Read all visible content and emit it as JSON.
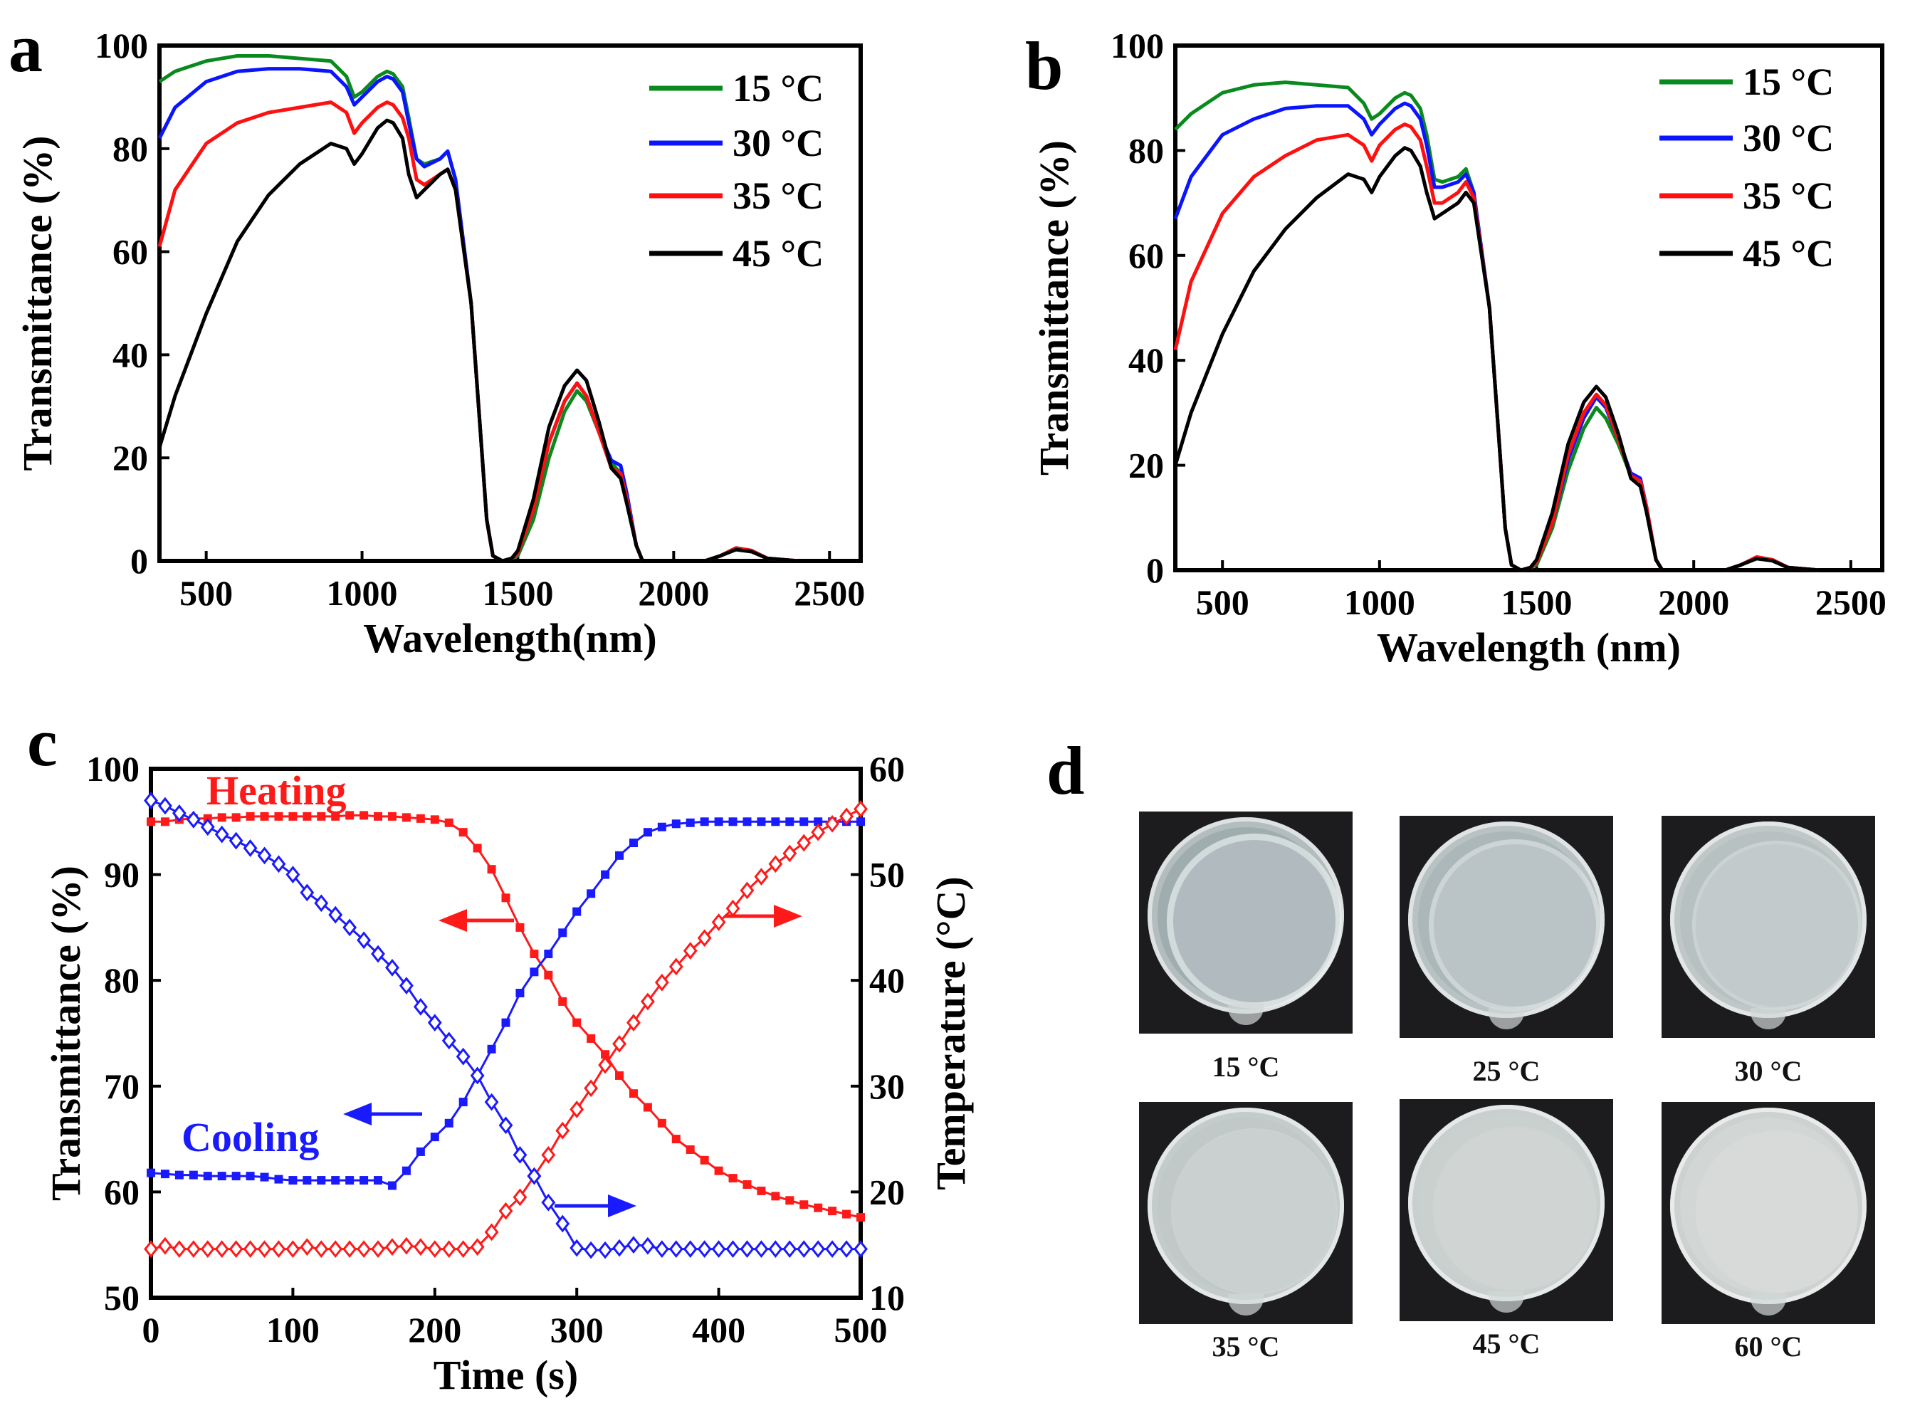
{
  "panel_labels": {
    "a": "a",
    "b": "b",
    "c": "c",
    "d": "d"
  },
  "chart_data": [
    {
      "id": "a",
      "type": "line",
      "title": "",
      "xlabel": "Wavelength(nm)",
      "ylabel": "Transmittance (%)",
      "xlim": [
        350,
        2600
      ],
      "ylim": [
        0,
        100
      ],
      "xticks": [
        500,
        1000,
        1500,
        2000,
        2500
      ],
      "yticks": [
        0,
        20,
        40,
        60,
        80,
        100
      ],
      "grid": false,
      "legend_position": "top-right",
      "x": [
        350,
        400,
        500,
        600,
        700,
        800,
        900,
        950,
        975,
        1000,
        1050,
        1080,
        1100,
        1130,
        1150,
        1175,
        1200,
        1250,
        1275,
        1300,
        1350,
        1380,
        1400,
        1420,
        1450,
        1480,
        1500,
        1550,
        1600,
        1650,
        1690,
        1720,
        1760,
        1800,
        1830,
        1850,
        1880,
        1900,
        2000,
        2100,
        2150,
        2200,
        2250,
        2300,
        2400,
        2500,
        2600
      ],
      "series": [
        {
          "name": "15 °C",
          "color": "#0a8a1e",
          "values": [
            93,
            95,
            97,
            98,
            98,
            97.5,
            97,
            94,
            90,
            91,
            94,
            95,
            94.5,
            92,
            86,
            78,
            77,
            78,
            79.5,
            74,
            50,
            25,
            8,
            1,
            0,
            0.5,
            1,
            8,
            20,
            29,
            33,
            31,
            25,
            19,
            17,
            12,
            3,
            0,
            0,
            0,
            1,
            2.5,
            2,
            0.5,
            0,
            0,
            0
          ]
        },
        {
          "name": "30 °C",
          "color": "#0a14ff",
          "values": [
            82,
            88,
            93,
            95,
            95.5,
            95.5,
            95,
            92,
            88.5,
            90,
            93,
            94,
            93.5,
            91,
            85,
            78,
            76.5,
            78,
            79.5,
            74,
            50,
            25,
            8,
            1,
            0,
            0.5,
            1.5,
            10,
            23,
            31,
            34.5,
            32,
            25,
            19.5,
            18.5,
            13,
            3,
            0,
            0,
            0,
            1,
            2.5,
            2,
            0.5,
            0,
            0,
            0
          ]
        },
        {
          "name": "35 °C",
          "color": "#ff1010",
          "values": [
            61,
            72,
            81,
            85,
            87,
            88,
            89,
            87,
            83,
            85,
            88,
            89,
            88.5,
            86,
            82,
            74,
            73,
            75,
            76,
            72,
            50,
            25,
            8,
            1,
            0,
            0.5,
            1.5,
            10,
            23,
            31,
            34.5,
            32,
            25,
            18,
            17,
            12,
            3,
            0,
            0,
            0,
            1,
            2.5,
            2,
            0.5,
            0,
            0,
            0
          ]
        },
        {
          "name": "45 °C",
          "color": "#000000",
          "values": [
            22,
            32,
            48,
            62,
            71,
            77,
            81,
            80,
            77,
            79,
            84,
            85.5,
            85,
            82,
            75,
            70.5,
            72,
            75,
            76,
            72,
            50,
            25,
            8,
            1,
            0,
            0.5,
            2,
            12,
            26,
            34,
            37,
            35,
            27,
            18,
            16,
            11,
            3,
            0,
            0,
            0,
            1,
            2.2,
            1.8,
            0.5,
            0,
            0,
            0
          ]
        }
      ]
    },
    {
      "id": "b",
      "type": "line",
      "title": "",
      "xlabel": "Wavelength (nm)",
      "ylabel": "Transmittance (%)",
      "xlim": [
        350,
        2600
      ],
      "ylim": [
        0,
        100
      ],
      "xticks": [
        500,
        1000,
        1500,
        2000,
        2500
      ],
      "yticks": [
        0,
        20,
        40,
        60,
        80,
        100
      ],
      "grid": false,
      "legend_position": "top-right",
      "x": [
        350,
        400,
        500,
        600,
        700,
        800,
        900,
        950,
        975,
        1000,
        1050,
        1080,
        1100,
        1130,
        1150,
        1175,
        1200,
        1250,
        1275,
        1300,
        1350,
        1380,
        1400,
        1420,
        1450,
        1480,
        1500,
        1550,
        1600,
        1650,
        1690,
        1720,
        1760,
        1800,
        1830,
        1850,
        1880,
        1900,
        2000,
        2100,
        2150,
        2200,
        2250,
        2300,
        2400,
        2500,
        2600
      ],
      "series": [
        {
          "name": "15 °C",
          "color": "#0a8a1e",
          "values": [
            84,
            87,
            91,
            92.5,
            93,
            92.5,
            92,
            89,
            86,
            87,
            90,
            91,
            90.5,
            88,
            83,
            74.5,
            74,
            75,
            76.5,
            72,
            50,
            25,
            8,
            1,
            0,
            0.5,
            1,
            8,
            19,
            27,
            31,
            29,
            24,
            18,
            17,
            11,
            2,
            0,
            0,
            0,
            1,
            2.5,
            2,
            0.5,
            0,
            0,
            0
          ]
        },
        {
          "name": "30 °C",
          "color": "#0a14ff",
          "values": [
            67,
            75,
            83,
            86,
            88,
            88.5,
            88.5,
            86,
            83,
            85,
            88,
            89,
            88.5,
            86,
            81,
            73,
            73,
            74,
            75.5,
            72,
            50,
            25,
            8,
            1,
            0,
            0.5,
            1.5,
            9,
            21,
            29,
            33,
            31,
            25,
            18.5,
            17.5,
            12,
            2,
            0,
            0,
            0,
            1,
            2.5,
            2,
            0.5,
            0,
            0,
            0
          ]
        },
        {
          "name": "35 °C",
          "color": "#ff1010",
          "values": [
            42,
            55,
            68,
            75,
            79,
            82,
            83,
            81,
            78,
            81,
            84,
            85,
            84.5,
            82,
            77,
            70,
            70,
            72,
            74,
            71,
            50,
            25,
            8,
            1,
            0,
            0.5,
            1.5,
            9,
            22,
            30,
            33.5,
            31.5,
            25,
            18,
            17,
            12,
            2,
            0,
            0,
            0,
            1,
            2.5,
            2,
            0.5,
            0,
            0,
            0
          ]
        },
        {
          "name": "45 °C",
          "color": "#000000",
          "values": [
            20,
            30,
            45,
            57,
            65,
            71,
            75.5,
            74.5,
            72,
            75,
            79,
            80.5,
            80,
            77,
            72,
            67,
            68,
            70,
            72,
            70,
            50,
            25,
            8,
            1,
            0,
            0.5,
            2,
            11,
            24,
            32,
            35,
            33,
            26,
            17.5,
            16,
            11,
            2,
            0,
            0,
            0,
            1,
            2.2,
            1.8,
            0.5,
            0,
            0,
            0
          ]
        }
      ]
    },
    {
      "id": "c",
      "type": "line",
      "title": "",
      "xlabel": "Time (s)",
      "ylabel": "Transmittance (%)",
      "ylabel_right": "Temperature (°C)",
      "xlim": [
        0,
        500
      ],
      "ylim": [
        50,
        100
      ],
      "ylim_right": [
        10,
        60
      ],
      "xticks": [
        0,
        100,
        200,
        300,
        400,
        500
      ],
      "yticks": [
        50,
        60,
        70,
        80,
        90,
        100
      ],
      "yticks_right": [
        10,
        20,
        30,
        40,
        50,
        60
      ],
      "grid": false,
      "annotations": {
        "heating": "Heating",
        "cooling": "Cooling"
      },
      "x": [
        0,
        10,
        20,
        30,
        40,
        50,
        60,
        70,
        80,
        90,
        100,
        110,
        120,
        130,
        140,
        150,
        160,
        170,
        180,
        190,
        200,
        210,
        220,
        230,
        240,
        250,
        260,
        270,
        280,
        290,
        300,
        310,
        320,
        330,
        340,
        350,
        360,
        370,
        380,
        390,
        400,
        410,
        420,
        430,
        440,
        450,
        460,
        470,
        480,
        490,
        500
      ],
      "series": [
        {
          "name": "Heating transmittance",
          "axis": "left",
          "marker": "square",
          "color": "#ff1a1a",
          "values": [
            95,
            95,
            95.2,
            95.3,
            95.3,
            95.4,
            95.4,
            95.5,
            95.5,
            95.5,
            95.5,
            95.5,
            95.5,
            95.5,
            95.6,
            95.6,
            95.5,
            95.5,
            95.4,
            95.3,
            95.2,
            94.9,
            94,
            92.5,
            90.5,
            87.8,
            85,
            82.5,
            80.5,
            78,
            76,
            74.5,
            73,
            71,
            69.3,
            68,
            66.5,
            65,
            64,
            63,
            62,
            61.3,
            60.7,
            60.1,
            59.6,
            59.2,
            58.8,
            58.5,
            58.2,
            57.9,
            57.6
          ]
        },
        {
          "name": "Cooling transmittance",
          "axis": "left",
          "marker": "square",
          "color": "#1a1aff",
          "values": [
            61.8,
            61.7,
            61.6,
            61.6,
            61.5,
            61.5,
            61.5,
            61.5,
            61.4,
            61.2,
            61.1,
            61.1,
            61.1,
            61.1,
            61.1,
            61.1,
            61.1,
            60.6,
            62,
            63.8,
            65.2,
            66.5,
            68.5,
            71,
            73.5,
            76,
            78.8,
            80.8,
            82.5,
            84.5,
            86.5,
            88.2,
            90,
            91.8,
            93,
            94,
            94.5,
            94.8,
            94.9,
            95,
            95,
            95,
            95,
            95,
            95,
            95,
            95,
            95,
            95,
            95,
            95
          ]
        },
        {
          "name": "Heating temperature",
          "axis": "right",
          "marker": "diamond",
          "color": "#ff1a1a",
          "values": [
            14.6,
            14.9,
            14.6,
            14.6,
            14.6,
            14.6,
            14.6,
            14.6,
            14.6,
            14.6,
            14.6,
            14.8,
            14.6,
            14.6,
            14.6,
            14.6,
            14.6,
            14.8,
            14.9,
            14.8,
            14.6,
            14.6,
            14.6,
            14.8,
            16.2,
            18.2,
            19.5,
            21.5,
            23.5,
            25.8,
            27.8,
            29.8,
            32,
            34,
            36,
            38,
            39.8,
            41.3,
            42.8,
            44,
            45.5,
            46.8,
            48.5,
            49.8,
            51,
            52,
            53,
            54,
            54.8,
            55.5,
            56.2
          ]
        },
        {
          "name": "Cooling temperature",
          "axis": "right",
          "marker": "diamond",
          "color": "#1a1aff",
          "values": [
            57,
            56.5,
            55.8,
            55.2,
            54.5,
            53.8,
            53.2,
            52.5,
            51.8,
            51,
            50,
            48.3,
            47.3,
            46.2,
            45,
            43.8,
            42.5,
            41.2,
            39.5,
            37.5,
            36,
            34.3,
            32.8,
            31,
            28.5,
            26.3,
            23.5,
            21.5,
            19,
            17,
            14.7,
            14.5,
            14.5,
            14.7,
            15,
            14.9,
            14.6,
            14.6,
            14.6,
            14.6,
            14.6,
            14.6,
            14.6,
            14.6,
            14.6,
            14.6,
            14.6,
            14.6,
            14.6,
            14.6,
            14.6
          ]
        }
      ]
    }
  ],
  "photos": [
    {
      "label": "15 °C",
      "opacity": 0.15
    },
    {
      "label": "25 °C",
      "opacity": 0.35
    },
    {
      "label": "30 °C",
      "opacity": 0.55
    },
    {
      "label": "35 °C",
      "opacity": 0.7
    },
    {
      "label": "45 °C",
      "opacity": 0.85
    },
    {
      "label": "60 °C",
      "opacity": 1.0
    }
  ]
}
